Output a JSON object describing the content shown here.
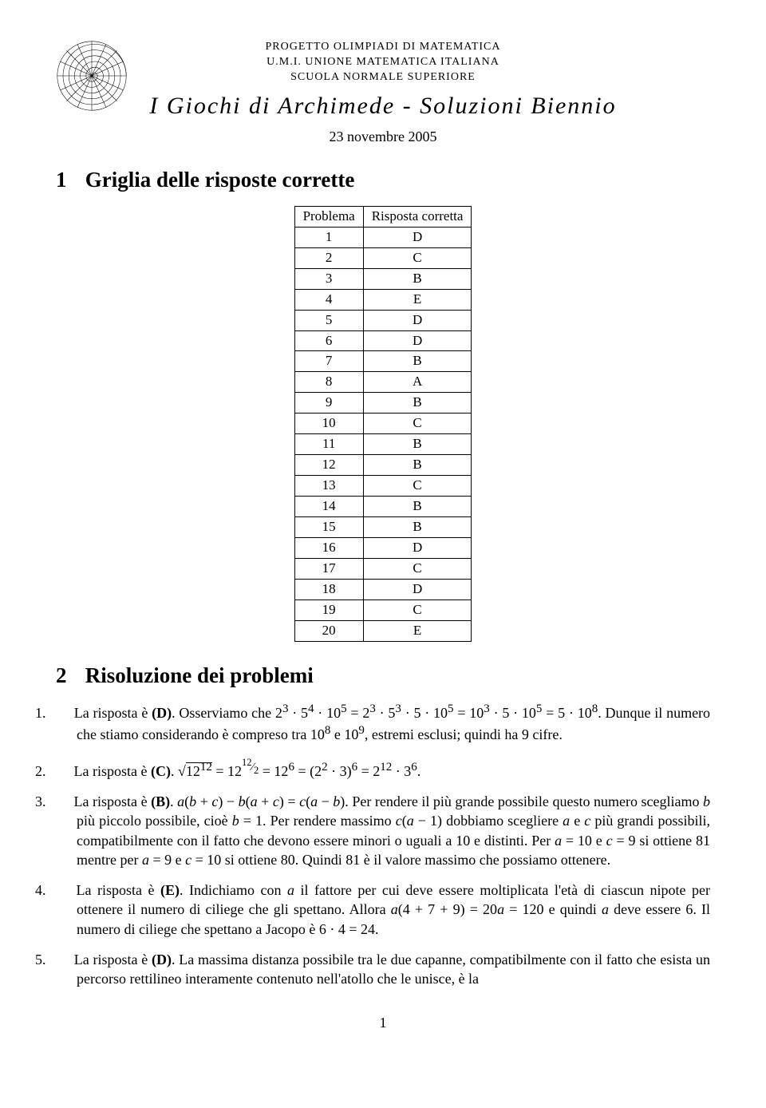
{
  "header": {
    "line1": "PROGETTO OLIMPIADI DI MATEMATICA",
    "line2": "U.M.I. UNIONE MATEMATICA ITALIANA",
    "line3": "SCUOLA NORMALE SUPERIORE",
    "title": "I Giochi di Archimede - Soluzioni Biennio",
    "date": "23 novembre 2005"
  },
  "section1": {
    "number": "1",
    "title": "Griglia delle risposte corrette"
  },
  "answer_table": {
    "col1_header": "Problema",
    "col2_header": "Risposta corretta",
    "rows": [
      {
        "n": "1",
        "a": "D"
      },
      {
        "n": "2",
        "a": "C"
      },
      {
        "n": "3",
        "a": "B"
      },
      {
        "n": "4",
        "a": "E"
      },
      {
        "n": "5",
        "a": "D"
      },
      {
        "n": "6",
        "a": "D"
      },
      {
        "n": "7",
        "a": "B"
      },
      {
        "n": "8",
        "a": "A"
      },
      {
        "n": "9",
        "a": "B"
      },
      {
        "n": "10",
        "a": "C"
      },
      {
        "n": "11",
        "a": "B"
      },
      {
        "n": "12",
        "a": "B"
      },
      {
        "n": "13",
        "a": "C"
      },
      {
        "n": "14",
        "a": "B"
      },
      {
        "n": "15",
        "a": "B"
      },
      {
        "n": "16",
        "a": "D"
      },
      {
        "n": "17",
        "a": "C"
      },
      {
        "n": "18",
        "a": "D"
      },
      {
        "n": "19",
        "a": "C"
      },
      {
        "n": "20",
        "a": "E"
      }
    ]
  },
  "section2": {
    "number": "2",
    "title": "Risoluzione dei problemi"
  },
  "solutions": [
    {
      "n": "1.",
      "html": "La risposta è <b>(D)</b>. Osserviamo che 2<sup>3</sup> · 5<sup>4</sup> · 10<sup>5</sup> = 2<sup>3</sup> · 5<sup>3</sup> · 5 · 10<sup>5</sup> = 10<sup>3</sup> · 5 · 10<sup>5</sup> = 5 · 10<sup>8</sup>. Dunque il numero che stiamo considerando è compreso tra 10<sup>8</sup> e 10<sup>9</sup>, estremi esclusi; quindi ha 9 cifre."
    },
    {
      "n": "2.",
      "html": "La risposta è <b>(C)</b>. <span style=\"white-space:nowrap;\">√<span style=\"border-top:1px solid #000;\">12<sup>12</sup></span></span> = 12<sup><sup>12</sup>&frasl;<sub>2</sub></sup> = 12<sup>6</sup> = (2<sup>2</sup> · 3)<sup>6</sup> = 2<sup>12</sup> · 3<sup>6</sup>."
    },
    {
      "n": "3.",
      "html": "La risposta è <b>(B)</b>. <i>a</i>(<i>b</i> + <i>c</i>) − <i>b</i>(<i>a</i> + <i>c</i>) = <i>c</i>(<i>a</i> − <i>b</i>). Per rendere il più grande possibile questo numero scegliamo <i>b</i> più piccolo possibile, cioè <i>b</i> = 1. Per rendere massimo <i>c</i>(<i>a</i> − 1) dobbiamo scegliere <i>a</i> e <i>c</i> più grandi possibili, compatibilmente con il fatto che devono essere minori o uguali a 10 e distinti. Per <i>a</i> = 10 e <i>c</i> = 9 si ottiene 81 mentre per <i>a</i> = 9 e <i>c</i> = 10 si ottiene 80. Quindi 81 è il valore massimo che possiamo ottenere."
    },
    {
      "n": "4.",
      "html": "La risposta è <b>(E)</b>. Indichiamo con <i>a</i> il fattore per cui deve essere moltiplicata l'età di ciascun nipote per ottenere il numero di ciliege che gli spettano. Allora <i>a</i>(4 + 7 + 9) = 20<i>a</i> = 120 e quindi <i>a</i> deve essere 6. Il numero di ciliege che spettano a Jacopo è 6 · 4 = 24."
    },
    {
      "n": "5.",
      "html": "La risposta è <b>(D)</b>. La massima distanza possibile tra le due capanne, compatibilmente con il fatto che esista un percorso rettilineo interamente contenuto nell'atollo che le unisce, è la"
    }
  ],
  "page_number": "1"
}
